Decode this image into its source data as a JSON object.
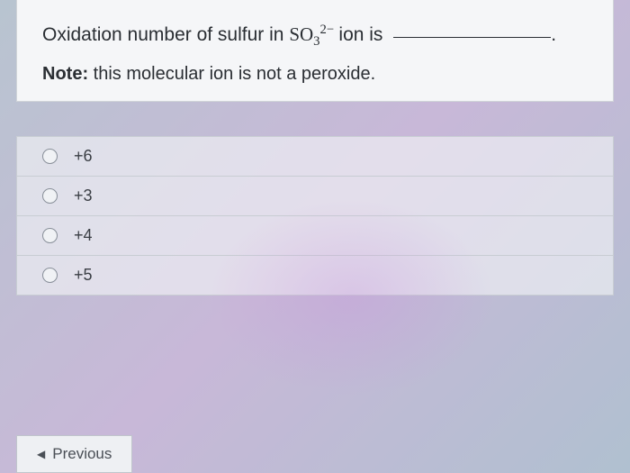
{
  "question": {
    "prefix": "Oxidation number of sulfur in ",
    "formula_base": "SO",
    "formula_sub": "3",
    "formula_sup": "2−",
    "suffix": " ion is ",
    "period": ".",
    "note_label": "Note:",
    "note_text": " this molecular ion is not a peroxide."
  },
  "options": [
    {
      "label": "+6"
    },
    {
      "label": "+3"
    },
    {
      "label": "+4"
    },
    {
      "label": "+5"
    }
  ],
  "nav": {
    "previous": "Previous"
  }
}
